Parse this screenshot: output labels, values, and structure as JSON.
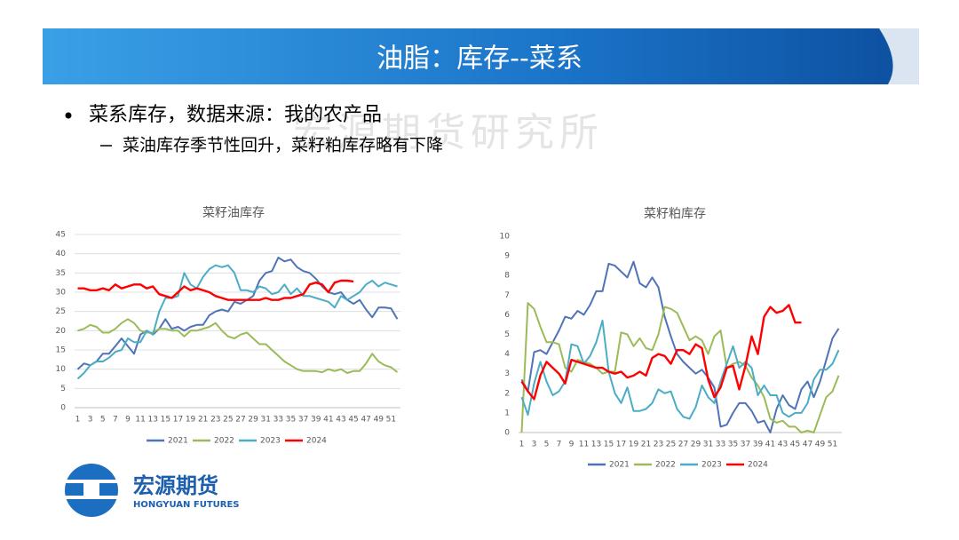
{
  "header": {
    "title": "油脂：库存--菜系"
  },
  "bullets": [
    {
      "text": "菜系库存，数据来源：我的农产品",
      "sub": [
        "菜油库存季节性回升，菜籽粕库存略有下降"
      ]
    }
  ],
  "watermark": "宏源期货研究所",
  "logo": {
    "name": "宏源期货",
    "english": "HONGYUAN FUTURES"
  },
  "chart_data": [
    {
      "type": "line",
      "title": "菜籽油库存",
      "x": [
        1,
        2,
        3,
        4,
        5,
        6,
        7,
        8,
        9,
        10,
        11,
        12,
        13,
        14,
        15,
        16,
        17,
        18,
        19,
        20,
        21,
        22,
        23,
        24,
        25,
        26,
        27,
        28,
        29,
        30,
        31,
        32,
        33,
        34,
        35,
        36,
        37,
        38,
        39,
        40,
        41,
        42,
        43,
        44,
        45,
        46,
        47,
        48,
        49,
        50,
        51,
        52
      ],
      "xlim": [
        0.5,
        52.5
      ],
      "xticks": [
        1,
        3,
        5,
        7,
        9,
        11,
        13,
        15,
        17,
        19,
        21,
        23,
        25,
        27,
        29,
        31,
        33,
        35,
        37,
        39,
        41,
        43,
        45,
        47,
        49,
        51
      ],
      "ylim": [
        0,
        45
      ],
      "yticks": [
        0,
        5,
        10,
        15,
        20,
        25,
        30,
        35,
        40,
        45
      ],
      "grid": true,
      "series": [
        {
          "name": "2021",
          "color": "#4f73b6",
          "values": [
            10,
            11.5,
            11,
            12,
            14,
            14,
            16,
            18,
            16,
            14,
            19,
            20,
            19,
            20.5,
            23,
            20.5,
            21,
            20,
            21,
            21.5,
            21.5,
            24,
            25,
            25.5,
            25,
            27.5,
            27,
            28,
            29,
            33,
            35,
            35.5,
            39,
            38,
            38.5,
            36.5,
            35.5,
            35,
            33.5,
            31.5,
            30,
            29.5,
            30,
            28,
            27,
            28,
            25.5,
            23.5,
            26,
            26,
            25.8,
            23
          ]
        },
        {
          "name": "2022",
          "color": "#9bbb59",
          "values": [
            20,
            20.5,
            21.5,
            21,
            19.5,
            19.5,
            20.5,
            22,
            23,
            22,
            20,
            19.5,
            19.5,
            20.5,
            20.5,
            20,
            20,
            18.5,
            20,
            20,
            20.5,
            21,
            22,
            20,
            18.5,
            18,
            19,
            19.5,
            18,
            16.5,
            16.5,
            15,
            13.5,
            12,
            11,
            10,
            9.5,
            9.5,
            9.5,
            9.2,
            10,
            9.5,
            10,
            9,
            9.5,
            9.5,
            11.5,
            14,
            12,
            11,
            10.5,
            9.2
          ]
        },
        {
          "name": "2023",
          "color": "#4bacc6",
          "values": [
            7.5,
            9,
            11,
            12,
            12,
            13,
            14.5,
            15,
            18,
            17,
            17,
            20,
            19,
            25,
            28.5,
            28.5,
            29,
            35,
            32,
            31,
            34,
            36,
            37,
            36.5,
            37,
            35,
            30.5,
            30.5,
            30,
            31.5,
            31,
            29.5,
            30,
            32,
            29.5,
            31,
            29,
            29,
            28.5,
            28,
            27.5,
            26,
            29,
            28,
            29,
            30,
            32,
            33,
            31.5,
            32.5,
            32,
            31.5
          ]
        },
        {
          "name": "2024",
          "color": "#ff0000",
          "values": [
            31,
            31,
            30.5,
            30.5,
            31,
            30.5,
            32,
            31,
            31.5,
            32,
            32,
            31,
            31.5,
            29.5,
            29,
            28.5,
            30,
            31.5,
            30.5,
            31,
            30.5,
            30,
            29,
            28.5,
            28,
            28,
            28,
            28,
            28,
            28,
            28.5,
            28,
            28,
            28.5,
            28.5,
            29,
            29.5,
            32,
            32.5,
            32,
            30,
            32.5,
            33,
            33,
            32.8,
            null,
            null,
            null,
            null,
            null,
            null,
            null
          ]
        }
      ]
    },
    {
      "type": "line",
      "title": "菜籽粕库存",
      "x": [
        1,
        2,
        3,
        4,
        5,
        6,
        7,
        8,
        9,
        10,
        11,
        12,
        13,
        14,
        15,
        16,
        17,
        18,
        19,
        20,
        21,
        22,
        23,
        24,
        25,
        26,
        27,
        28,
        29,
        30,
        31,
        32,
        33,
        34,
        35,
        36,
        37,
        38,
        39,
        40,
        41,
        42,
        43,
        44,
        45,
        46,
        47,
        48,
        49,
        50,
        51,
        52
      ],
      "xlim": [
        0.5,
        52.5
      ],
      "xticks": [
        1,
        3,
        5,
        7,
        9,
        11,
        13,
        15,
        17,
        19,
        21,
        23,
        25,
        27,
        29,
        31,
        33,
        35,
        37,
        39,
        41,
        43,
        45,
        47,
        49,
        51
      ],
      "ylim": [
        0,
        10
      ],
      "yticks": [
        0,
        1,
        2,
        3,
        4,
        5,
        6,
        7,
        8,
        9,
        10
      ],
      "grid": false,
      "series": [
        {
          "name": "2021",
          "color": "#4f73b6",
          "values": [
            2.7,
            2.1,
            4.1,
            4.2,
            4.0,
            4.6,
            5.2,
            5.9,
            5.8,
            6.2,
            6.0,
            6.5,
            7.2,
            7.2,
            8.6,
            8.5,
            8.2,
            7.9,
            8.7,
            7.6,
            7.4,
            7.9,
            7.4,
            5.9,
            4.9,
            4.0,
            3.6,
            3.3,
            3.0,
            3.2,
            2.8,
            2.3,
            0.3,
            0.4,
            1.0,
            1.5,
            1.5,
            1.1,
            0.5,
            0.6,
            0.0,
            1.2,
            1.9,
            1.4,
            1.2,
            2.2,
            2.6,
            1.8,
            2.6,
            3.7,
            4.8,
            5.3
          ]
        },
        {
          "name": "2022",
          "color": "#9bbb59",
          "values": [
            0,
            6.6,
            6.3,
            5.4,
            4.6,
            4.6,
            4.5,
            3.3,
            3.1,
            3.7,
            3.6,
            3.5,
            3.3,
            3.0,
            3.1,
            3.1,
            5.1,
            5.0,
            4.4,
            4.8,
            4.3,
            4.2,
            5.0,
            6.4,
            6.3,
            6.1,
            5.4,
            4.7,
            4.9,
            4.7,
            4.0,
            4.9,
            5.2,
            3.3,
            3.5,
            3.6,
            3.4,
            2.8,
            2.4,
            1.8,
            0.7,
            0.5,
            0.6,
            0.3,
            0.3,
            0.0,
            0.1,
            0.0,
            0.9,
            1.8,
            2.1,
            2.9
          ]
        },
        {
          "name": "2023",
          "color": "#4bacc6",
          "values": [
            1.8,
            0.9,
            2.5,
            3.6,
            2.6,
            1.9,
            2.1,
            2.6,
            4.5,
            4.4,
            3.5,
            3.9,
            4.6,
            5.7,
            3.1,
            2.0,
            1.5,
            2.3,
            1.1,
            1.1,
            1.2,
            1.5,
            2.2,
            2.0,
            2.1,
            1.2,
            0.8,
            0.7,
            1.3,
            2.4,
            1.8,
            1.5,
            2.6,
            3.5,
            4.4,
            3.3,
            3.6,
            3.3,
            1.9,
            2.4,
            1.9,
            1.9,
            1.0,
            0.8,
            1.0,
            1.0,
            1.5,
            2.7,
            3.2,
            3.2,
            3.5,
            4.2
          ]
        },
        {
          "name": "2024",
          "color": "#ff0000",
          "values": [
            2.6,
            2.1,
            1.7,
            2.9,
            3.6,
            3.3,
            3.0,
            2.5,
            3.7,
            3.6,
            3.5,
            3.4,
            3.3,
            3.3,
            3.1,
            3.0,
            3.1,
            2.8,
            2.9,
            3.1,
            2.9,
            3.8,
            4.0,
            3.9,
            3.5,
            4.2,
            4.2,
            4.0,
            4.5,
            4.3,
            2.7,
            1.8,
            2.3,
            3.3,
            3.4,
            2.2,
            3.4,
            4.9,
            4.0,
            5.9,
            6.4,
            6.1,
            6.2,
            6.5,
            5.6,
            5.6,
            null,
            null,
            null,
            null,
            null,
            null
          ]
        }
      ]
    }
  ]
}
